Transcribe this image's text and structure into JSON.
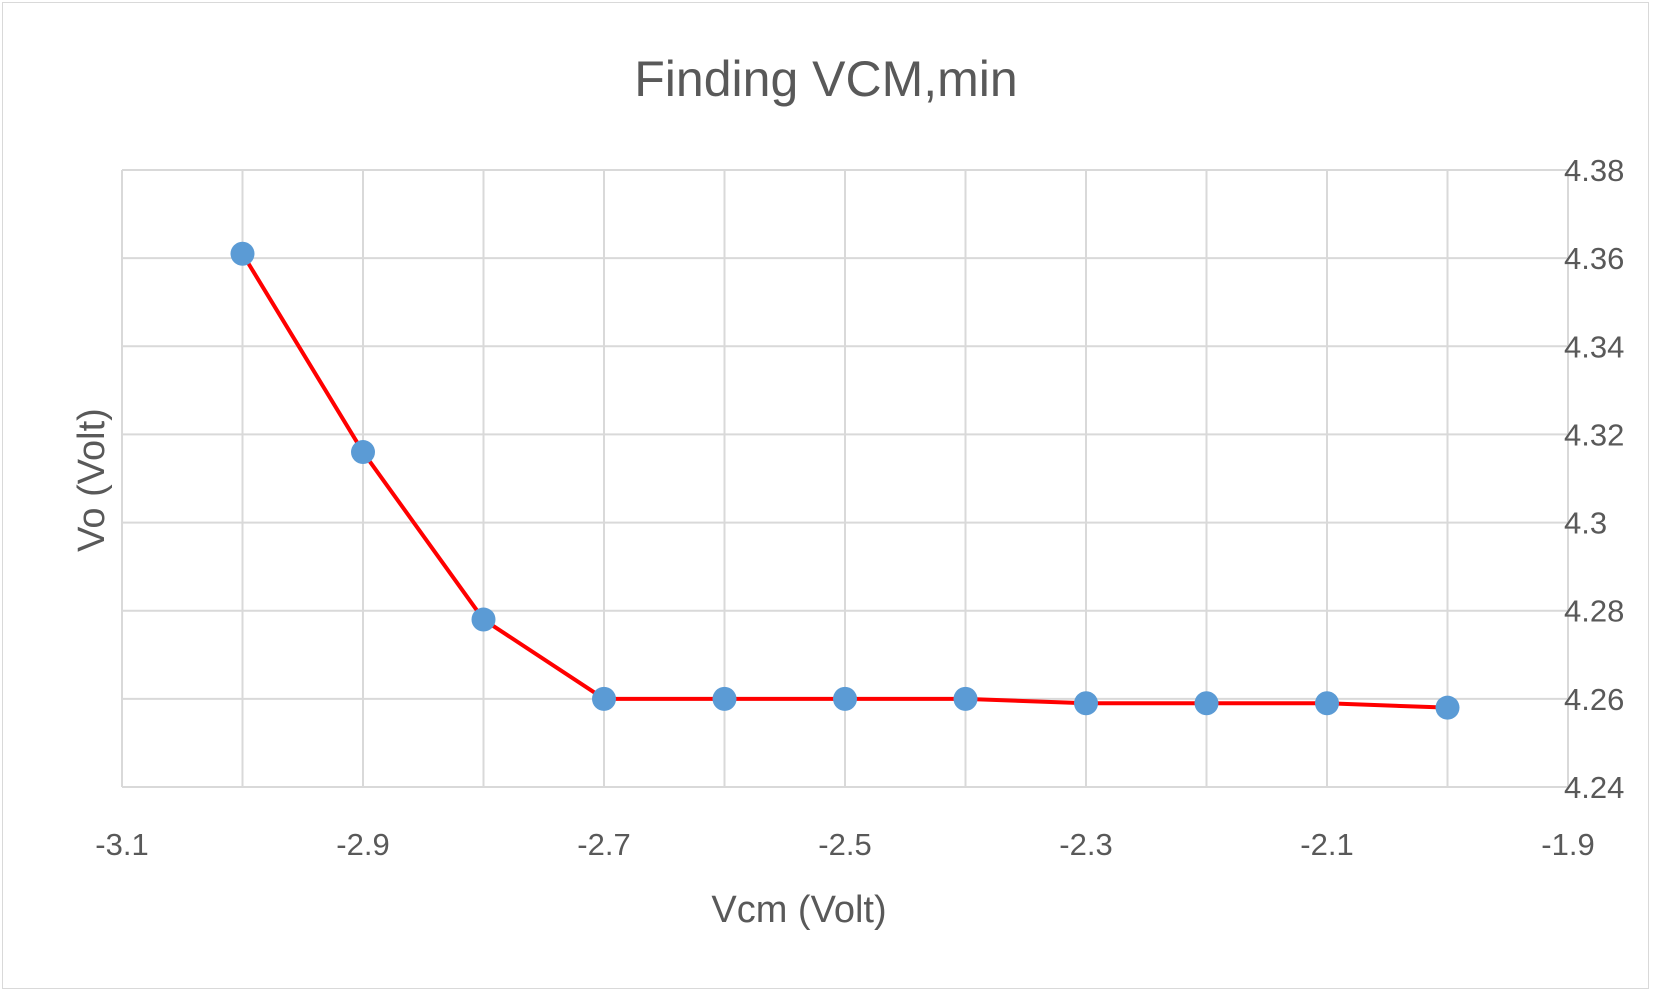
{
  "chart_data": {
    "type": "scatter",
    "title": "Finding VCM,min",
    "xlabel": "Vcm (Volt)",
    "ylabel": "Vo (Volt)",
    "xlim": [
      -3.1,
      -1.9
    ],
    "ylim": [
      4.24,
      4.38
    ],
    "x_ticks": [
      "-3.1",
      "-2.9",
      "-2.7",
      "-2.5",
      "-2.3",
      "-2.1",
      "-1.9"
    ],
    "x_tick_values": [
      -3.1,
      -2.9,
      -2.7,
      -2.5,
      -2.3,
      -2.1,
      -1.9
    ],
    "y_ticks": [
      "4.24",
      "4.26",
      "4.28",
      "4.3",
      "4.32",
      "4.34",
      "4.36",
      "4.38"
    ],
    "y_tick_values": [
      4.24,
      4.26,
      4.28,
      4.3,
      4.32,
      4.34,
      4.36,
      4.38
    ],
    "y_axis_side": "right",
    "x_minor_gridlines": true,
    "grid": true,
    "series": [
      {
        "x": [
          -3.0,
          -2.9,
          -2.8,
          -2.7,
          -2.6,
          -2.5,
          -2.4,
          -2.3,
          -2.2,
          -2.1,
          -2.0
        ],
        "values": [
          4.361,
          4.316,
          4.278,
          4.26,
          4.26,
          4.26,
          4.26,
          4.259,
          4.259,
          4.259,
          4.258
        ],
        "line_color": "#ff0000",
        "marker_color": "#5b9bd5"
      }
    ]
  }
}
